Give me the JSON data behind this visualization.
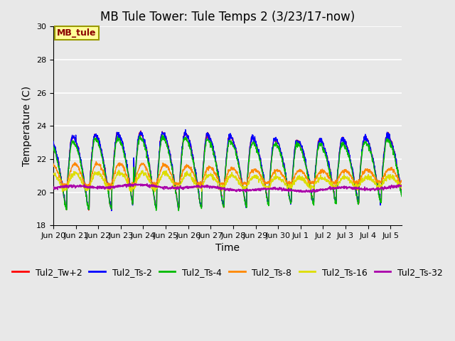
{
  "title": "MB Tule Tower: Tule Temps 2 (3/23/17-now)",
  "xlabel": "Time",
  "ylabel": "Temperature (C)",
  "ylim": [
    18,
    30
  ],
  "yticks": [
    18,
    20,
    22,
    24,
    26,
    28,
    30
  ],
  "background_color": "#e8e8e8",
  "plot_bg_color": "#e8e8e8",
  "annotation_text": "MB_tule",
  "annotation_color": "#8b0000",
  "annotation_bg": "#ffff99",
  "annotation_border": "#999900",
  "legend_entries": [
    "Tul2_Tw+2",
    "Tul2_Ts-2",
    "Tul2_Ts-4",
    "Tul2_Ts-8",
    "Tul2_Ts-16",
    "Tul2_Ts-32"
  ],
  "line_colors": [
    "#ff0000",
    "#0000ff",
    "#00bb00",
    "#ff8800",
    "#dddd00",
    "#aa00aa"
  ],
  "xtick_labels": [
    "Jun 20",
    "Jun 21",
    "Jun 22",
    "Jun 23",
    "Jun 24",
    "Jun 25",
    "Jun 26",
    "Jun 27",
    "Jun 28",
    "Jun 29",
    "Jun 30",
    "Jul 1",
    "Jul 2",
    "Jul 3",
    "Jul 4",
    "Jul 5"
  ],
  "title_fontsize": 12,
  "axis_fontsize": 10,
  "tick_fontsize": 8,
  "legend_fontsize": 9
}
